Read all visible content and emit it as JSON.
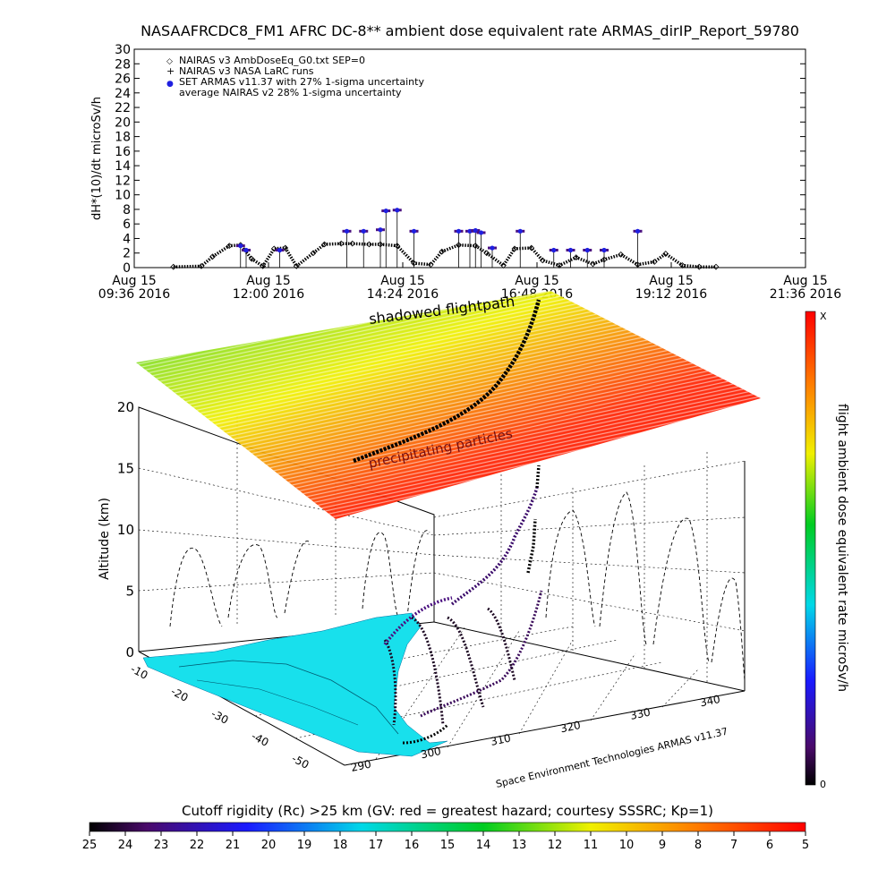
{
  "title": "NASAAFRCDC8_FM1 AFRC DC-8** ambient dose equivalent rate ARMAS_dirIP_Report_59780",
  "chart_data": [
    {
      "type": "scatter",
      "ylabel": "dH*(10)/dt microSv/h",
      "ylim": [
        0,
        30
      ],
      "y_ticks": [
        "0",
        "2",
        "4",
        "6",
        "8",
        "10",
        "12",
        "14",
        "16",
        "18",
        "20",
        "22",
        "24",
        "26",
        "28",
        "30"
      ],
      "x_ticks": [
        {
          "l1": "Aug 15",
          "l2": "09:36 2016"
        },
        {
          "l1": "Aug 15",
          "l2": "12:00 2016"
        },
        {
          "l1": "Aug 15",
          "l2": "14:24 2016"
        },
        {
          "l1": "Aug 15",
          "l2": "16:48 2016"
        },
        {
          "l1": "Aug 15",
          "l2": "19:12 2016"
        },
        {
          "l1": "Aug 15",
          "l2": "21:36 2016"
        }
      ],
      "legend": [
        {
          "symbol": "◇",
          "text": "NAIRAS v3 AmbDoseEq_G0.txt SEP=0"
        },
        {
          "symbol": "+",
          "text": "NAIRAS v3 NASA LaRC runs"
        },
        {
          "symbol": "●",
          "text": "SET ARMAS v11.37 with 27% 1-sigma uncertainty"
        },
        {
          "symbol": "",
          "text": "average NAIRAS v2 28% 1-sigma uncertainty"
        }
      ],
      "series": [
        {
          "name": "NAIRAS v3 AmbDoseEq_G0.txt SEP=0",
          "x_hours": [
            10.3,
            10.8,
            11.0,
            11.3,
            11.5,
            11.7,
            11.9,
            12.1,
            12.3,
            12.5,
            12.8,
            13.0,
            13.3,
            13.5,
            13.8,
            14.0,
            14.3,
            14.6,
            14.9,
            15.1,
            15.4,
            15.7,
            15.9,
            16.2,
            16.4,
            16.7,
            16.9,
            17.2,
            17.5,
            17.8,
            18.0,
            18.3,
            18.6,
            18.9,
            19.1,
            19.4,
            19.7,
            20.0
          ],
          "values": [
            0.1,
            0.2,
            1.5,
            3.0,
            3.1,
            1.2,
            0.2,
            2.6,
            2.7,
            0.2,
            2.0,
            3.2,
            3.3,
            3.3,
            3.2,
            3.2,
            3.0,
            0.6,
            0.4,
            2.2,
            3.1,
            3.0,
            2.0,
            0.3,
            2.6,
            2.7,
            1.0,
            0.3,
            1.4,
            0.5,
            1.1,
            1.8,
            0.4,
            0.8,
            1.9,
            0.3,
            0.1,
            0.1
          ]
        },
        {
          "name": "SET ARMAS v11.37 with 27% 1-sigma uncertainty",
          "x_hours": [
            11.5,
            11.6,
            12.2,
            13.4,
            13.7,
            14.0,
            14.1,
            14.3,
            14.6,
            15.4,
            15.6,
            15.7,
            15.8,
            16.0,
            16.5,
            17.1,
            17.4,
            17.7,
            18.0,
            18.6
          ],
          "values": [
            3.0,
            2.4,
            2.4,
            5.0,
            5.0,
            5.2,
            7.8,
            7.9,
            5.0,
            5.0,
            5.0,
            5.1,
            4.8,
            2.7,
            5.0,
            2.4,
            2.4,
            2.4,
            2.4,
            5.0
          ]
        }
      ]
    },
    {
      "type": "surface",
      "ylabel": "Altitude (km)",
      "z_ticks": [
        "0",
        "5",
        "10",
        "15",
        "20"
      ],
      "lat_ticks": [
        "-10",
        "-20",
        "-30",
        "-40",
        "-50"
      ],
      "lon_ticks": [
        "290",
        "300",
        "310",
        "320",
        "330",
        "340"
      ],
      "labels": {
        "shadowed": "shadowed flightpath",
        "precip": "precipitating particles",
        "credit": "Space Environment Technologies ARMAS v11.37"
      },
      "colorbar_right": {
        "label": "flight ambient dose equivalent rate microSv/h",
        "top": "X",
        "bottom": "0"
      },
      "colorbar_bottom": {
        "title": "Cutoff rigidity (Rc) >25 km (GV: red = greatest hazard; courtesy SSSRC; Kp=1)",
        "ticks": [
          "25",
          "24",
          "23",
          "22",
          "21",
          "20",
          "19",
          "18",
          "17",
          "16",
          "15",
          "14",
          "13",
          "12",
          "11",
          "10",
          "9",
          "8",
          "7",
          "6",
          "5"
        ]
      }
    }
  ]
}
